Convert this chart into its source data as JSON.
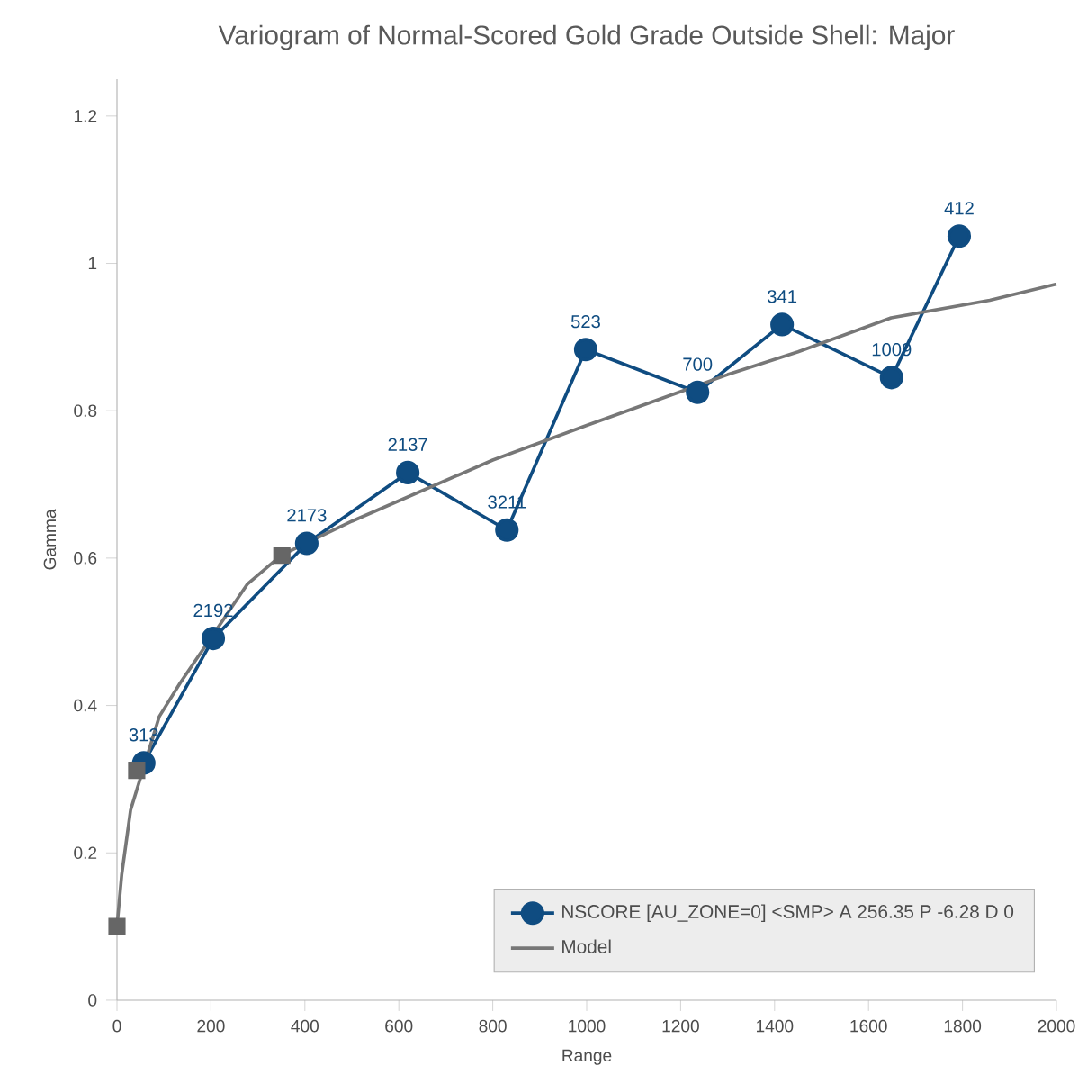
{
  "chart_data": {
    "type": "line",
    "title": "Variogram of Normal-Scored Gold Grade Outside Shell: Major",
    "xlabel": "Range",
    "ylabel": "Gamma",
    "xlim": [
      0,
      2000
    ],
    "ylim": [
      0,
      1.25
    ],
    "xticks": [
      0,
      200,
      400,
      600,
      800,
      1000,
      1200,
      1400,
      1600,
      1800,
      2000
    ],
    "yticks": [
      0,
      0.2,
      0.4,
      0.6,
      0.8,
      1,
      1.2
    ],
    "legend": "bottom right",
    "series": [
      {
        "name": "NSCORE [AU_ZONE=0] <SMP> A 256.35 P -6.28 D 0",
        "marker": "circle",
        "color": "#0f4c81",
        "x": [
          57,
          205,
          404,
          619,
          830,
          998,
          1236,
          1416,
          1649,
          1793
        ],
        "values": [
          0.322,
          0.491,
          0.62,
          0.716,
          0.638,
          0.883,
          0.825,
          0.917,
          0.845,
          1.037
        ]
      },
      {
        "name": "Model",
        "marker": "none",
        "color": "#777777",
        "x": [
          0,
          10,
          29,
          90,
          134,
          278,
          350,
          500,
          800,
          1000,
          1300,
          1450,
          1648,
          1858,
          2000
        ],
        "values": [
          0.1,
          0.17,
          0.258,
          0.385,
          0.43,
          0.565,
          0.604,
          0.65,
          0.733,
          0.78,
          0.849,
          0.88,
          0.926,
          0.95,
          0.972
        ]
      },
      {
        "type": "scatter",
        "marker": "square",
        "color": "#666666",
        "x": [
          0,
          42,
          351
        ],
        "values": [
          0.1,
          0.312,
          0.604
        ]
      }
    ],
    "annotations": [
      {
        "text": "313",
        "x": 57,
        "y": 0.322
      },
      {
        "text": "2192",
        "x": 205,
        "y": 0.491
      },
      {
        "text": "2173",
        "x": 404,
        "y": 0.62
      },
      {
        "text": "2137",
        "x": 619,
        "y": 0.716
      },
      {
        "text": "3211",
        "x": 830,
        "y": 0.638
      },
      {
        "text": "523",
        "x": 998,
        "y": 0.883
      },
      {
        "text": "700",
        "x": 1236,
        "y": 0.825
      },
      {
        "text": "341",
        "x": 1416,
        "y": 0.917
      },
      {
        "text": "1009",
        "x": 1649,
        "y": 0.845
      },
      {
        "text": "412",
        "x": 1793,
        "y": 1.037
      }
    ]
  }
}
